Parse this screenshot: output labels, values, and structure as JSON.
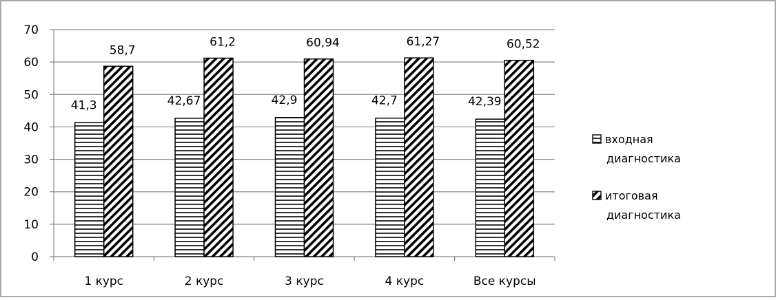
{
  "chart_data": {
    "type": "bar",
    "title": "",
    "xlabel": "",
    "ylabel": "",
    "categories": [
      "1 курс",
      "2 курс",
      "3 курс",
      "4 курс",
      "Все курсы"
    ],
    "series": [
      {
        "name": "входная диагностика",
        "name_lines": [
          "входная",
          "диагностика"
        ],
        "values": [
          41.3,
          42.67,
          42.9,
          42.7,
          42.39
        ],
        "value_labels": [
          "41,3",
          "42,67",
          "42,9",
          "42,7",
          "42,39"
        ],
        "pattern": "horizontal-lines"
      },
      {
        "name": "итоговая диагностика",
        "name_lines": [
          "итоговая",
          "диагностика"
        ],
        "values": [
          58.7,
          61.2,
          60.94,
          61.27,
          60.52
        ],
        "value_labels": [
          "58,7",
          "61,2",
          "60,94",
          "61,27",
          "60,52"
        ],
        "pattern": "diagonal-lines"
      }
    ],
    "ylim": [
      0,
      70
    ],
    "yticks": [
      0,
      10,
      20,
      30,
      40,
      50,
      60,
      70
    ],
    "grid": true,
    "legend_position": "right",
    "colors": {
      "gridline": "#868686",
      "bar_stroke": "#000000",
      "bar_fill": "#ffffff"
    }
  }
}
